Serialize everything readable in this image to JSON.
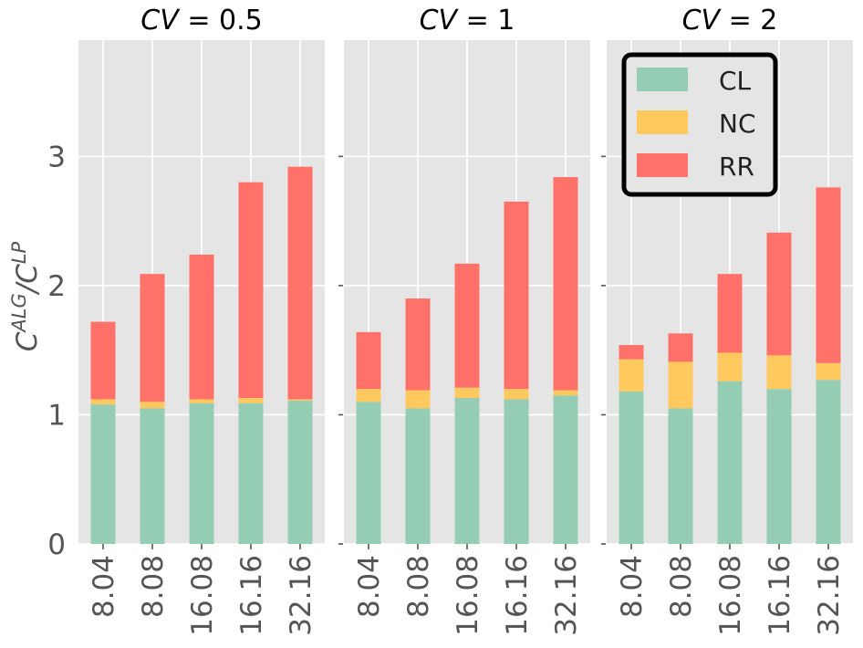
{
  "chart_data": {
    "type": "bar",
    "stacked": true,
    "ylabel": {
      "base": "C",
      "sup1": "ALG",
      "slash": "/C",
      "sup2": "LP"
    },
    "ylim": [
      0,
      3.9
    ],
    "yticks": [
      0,
      1,
      2,
      3
    ],
    "categories": [
      "8.04",
      "8.08",
      "16.08",
      "16.16",
      "32.16"
    ],
    "legend": {
      "placement": "top-right of third panel",
      "entries": [
        {
          "name": "CL",
          "color": "#95ccb4"
        },
        {
          "name": "NC",
          "color": "#ffc95e"
        },
        {
          "name": "RR",
          "color": "#ff7169"
        }
      ]
    },
    "panels": [
      {
        "title": "CV = 0.5",
        "title_italic": "CV",
        "title_rest": " = 0.5",
        "series": [
          {
            "name": "CL",
            "values": [
              1.08,
              1.05,
              1.09,
              1.09,
              1.11
            ]
          },
          {
            "name": "NC",
            "values": [
              0.04,
              0.05,
              0.03,
              0.04,
              0.01
            ]
          },
          {
            "name": "RR",
            "values": [
              0.6,
              0.99,
              1.12,
              1.67,
              1.8
            ]
          }
        ]
      },
      {
        "title": "CV = 1",
        "title_italic": "CV",
        "title_rest": " = 1",
        "series": [
          {
            "name": "CL",
            "values": [
              1.1,
              1.05,
              1.13,
              1.12,
              1.15
            ]
          },
          {
            "name": "NC",
            "values": [
              0.1,
              0.14,
              0.08,
              0.08,
              0.04
            ]
          },
          {
            "name": "RR",
            "values": [
              0.44,
              0.71,
              0.96,
              1.45,
              1.65
            ]
          }
        ]
      },
      {
        "title": "CV = 2",
        "title_italic": "CV",
        "title_rest": " = 2",
        "series": [
          {
            "name": "CL",
            "values": [
              1.18,
              1.05,
              1.26,
              1.2,
              1.27
            ]
          },
          {
            "name": "NC",
            "values": [
              0.25,
              0.36,
              0.22,
              0.26,
              0.13
            ]
          },
          {
            "name": "RR",
            "values": [
              0.11,
              0.22,
              0.61,
              0.95,
              1.36
            ]
          }
        ]
      }
    ]
  }
}
